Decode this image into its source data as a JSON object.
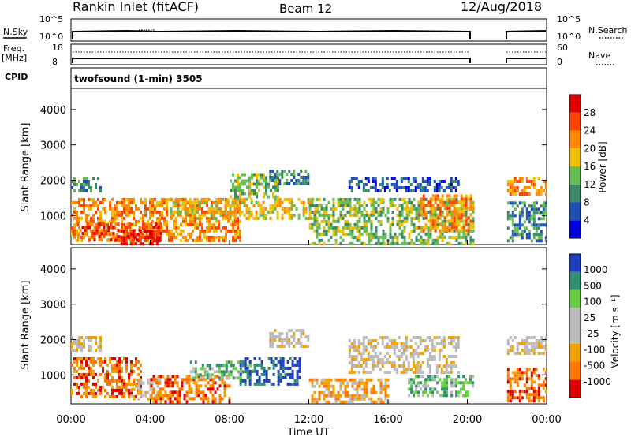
{
  "header": {
    "station": "Rankin Inlet (fitACF)",
    "beam": "Beam 12",
    "date": "12/Aug/2018"
  },
  "strip_labels": {
    "nsky": "N.Sky",
    "freq_top": "Freq.",
    "freq_unit": "[MHz]",
    "cpid": "CPID",
    "nsearch": "N.Search",
    "nave": "Nave",
    "nsky_ticks": [
      "10^5",
      "10^0"
    ],
    "nsearch_ticks": [
      "10^5",
      "10^0"
    ],
    "freq_ticks": [
      "18",
      "8"
    ],
    "nave_ticks": [
      "60",
      "0"
    ],
    "cpid_text": "twofsound (1-min) 3505"
  },
  "chart_data": [
    {
      "type": "heatmap",
      "title": "",
      "xlabel": "",
      "ylabel": "Slant Range [km]",
      "colorbar_label": "Power [dB]",
      "xlim_hours": [
        0,
        24
      ],
      "ylim": [
        180,
        4600
      ],
      "yticks": [
        1000,
        2000,
        3000,
        4000
      ],
      "colorbar_ticks": [
        "28",
        "24",
        "20",
        "16",
        "12",
        "8",
        "4"
      ],
      "colors": [
        "#0000e0",
        "#1f4fb3",
        "#3a8a6a",
        "#66bb55",
        "#f0c000",
        "#ff8800",
        "#ff4400",
        "#e00000"
      ],
      "echo_regions": [
        {
          "t": [
            0.0,
            8.5
          ],
          "r": [
            250,
            1500
          ],
          "level": 5
        },
        {
          "t": [
            0.3,
            4.5
          ],
          "r": [
            300,
            800
          ],
          "level": 6
        },
        {
          "t": [
            2.5,
            4.5
          ],
          "r": [
            200,
            600
          ],
          "level": 7
        },
        {
          "t": [
            0.0,
            1.5
          ],
          "r": [
            1700,
            2100
          ],
          "level": 2
        },
        {
          "t": [
            5.0,
            12.5
          ],
          "r": [
            900,
            1500
          ],
          "level": 4
        },
        {
          "t": [
            8.0,
            10.5
          ],
          "r": [
            1500,
            2200
          ],
          "level": 3
        },
        {
          "t": [
            10.0,
            12.0
          ],
          "r": [
            1900,
            2300
          ],
          "level": 2
        },
        {
          "t": [
            12.0,
            20.3
          ],
          "r": [
            200,
            1500
          ],
          "level": 3
        },
        {
          "t": [
            14.0,
            19.5
          ],
          "r": [
            1700,
            2100
          ],
          "level": 1
        },
        {
          "t": [
            17.5,
            20.3
          ],
          "r": [
            600,
            1600
          ],
          "level": 5
        },
        {
          "t": [
            22.0,
            24.0
          ],
          "r": [
            1600,
            2100
          ],
          "level": 5
        },
        {
          "t": [
            22.0,
            24.0
          ],
          "r": [
            300,
            1400
          ],
          "level": 2
        }
      ]
    },
    {
      "type": "heatmap",
      "title": "",
      "xlabel": "Time UT",
      "ylabel": "Slant Range [km]",
      "colorbar_label": "Velocity [m s⁻¹]",
      "xlim_hours": [
        0,
        24
      ],
      "ylim": [
        180,
        4600
      ],
      "yticks": [
        1000,
        2000,
        3000,
        4000
      ],
      "xticks": [
        "00:00",
        "04:00",
        "08:00",
        "12:00",
        "16:00",
        "20:00",
        "00:00"
      ],
      "colorbar_ticks": [
        "1000",
        "500",
        "100",
        "25",
        "-25",
        "-100",
        "-500",
        "-1000"
      ],
      "colors": [
        "#e00000",
        "#ff7700",
        "#f0a000",
        "#bbbbbb",
        "#bbbbbb",
        "#66cc44",
        "#2f8f6f",
        "#1f3fbf"
      ],
      "echo_regions": [
        {
          "t": [
            0.0,
            3.5
          ],
          "r": [
            400,
            1500
          ],
          "level": 1
        },
        {
          "t": [
            0.0,
            1.5
          ],
          "r": [
            1700,
            2100
          ],
          "level": 3
        },
        {
          "t": [
            3.0,
            4.5
          ],
          "r": [
            300,
            900
          ],
          "level": 3
        },
        {
          "t": [
            4.0,
            8.0
          ],
          "r": [
            200,
            1000
          ],
          "level": 1
        },
        {
          "t": [
            6.0,
            9.0
          ],
          "r": [
            900,
            1400
          ],
          "level": 5
        },
        {
          "t": [
            8.5,
            11.5
          ],
          "r": [
            700,
            1500
          ],
          "level": 7
        },
        {
          "t": [
            10.0,
            12.0
          ],
          "r": [
            1800,
            2300
          ],
          "level": 3
        },
        {
          "t": [
            12.0,
            16.0
          ],
          "r": [
            200,
            900
          ],
          "level": 2
        },
        {
          "t": [
            14.0,
            19.5
          ],
          "r": [
            1100,
            2100
          ],
          "level": 3
        },
        {
          "t": [
            17.0,
            20.3
          ],
          "r": [
            400,
            1000
          ],
          "level": 5
        },
        {
          "t": [
            22.0,
            24.0
          ],
          "r": [
            1600,
            2100
          ],
          "level": 3
        },
        {
          "t": [
            22.0,
            24.0
          ],
          "r": [
            300,
            1200
          ],
          "level": 1
        }
      ]
    }
  ]
}
